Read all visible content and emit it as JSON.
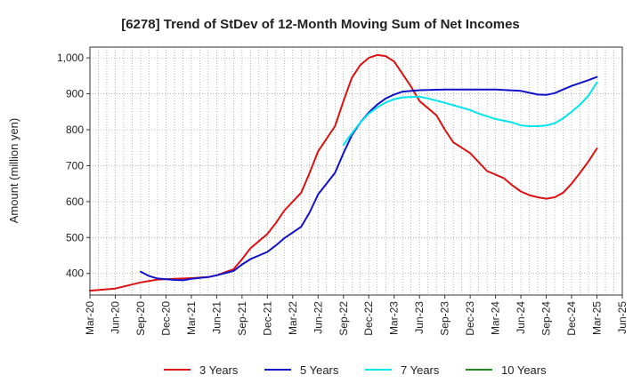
{
  "chart_data": {
    "type": "line",
    "title": "[6278]  Trend of StDev of 12-Month Moving Sum of Net Incomes",
    "ylabel": "Amount (million yen)",
    "xlabel": "",
    "ylim": [
      340,
      1030
    ],
    "yticks": [
      400,
      500,
      600,
      700,
      800,
      900,
      1000
    ],
    "ytick_labels": [
      "400",
      "500",
      "600",
      "700",
      "800",
      "900",
      "1,000"
    ],
    "x_tick_labels": [
      "Mar-20",
      "Jun-20",
      "Sep-20",
      "Dec-20",
      "Mar-21",
      "Jun-21",
      "Sep-21",
      "Dec-21",
      "Mar-22",
      "Jun-22",
      "Sep-22",
      "Dec-22",
      "Mar-23",
      "Jun-23",
      "Sep-23",
      "Dec-23",
      "Mar-24",
      "Jun-24",
      "Sep-24",
      "Dec-24",
      "Mar-25",
      "Jun-25"
    ],
    "grid": true,
    "legend_position": "bottom",
    "series": [
      {
        "name": "3 Years",
        "color": "#dd1111",
        "points": [
          [
            "Mar-20",
            352
          ],
          [
            "Jun-20",
            358
          ],
          [
            "Sep-20",
            375
          ],
          [
            "Nov-20",
            383
          ],
          [
            "Jan-21",
            385
          ],
          [
            "Mar-21",
            387
          ],
          [
            "May-21",
            390
          ],
          [
            "Jun-21",
            395
          ],
          [
            "Aug-21",
            412
          ],
          [
            "Sep-21",
            440
          ],
          [
            "Oct-21",
            470
          ],
          [
            "Dec-21",
            510
          ],
          [
            "Jan-22",
            540
          ],
          [
            "Feb-22",
            575
          ],
          [
            "Apr-22",
            625
          ],
          [
            "May-22",
            680
          ],
          [
            "Jun-22",
            740
          ],
          [
            "Aug-22",
            810
          ],
          [
            "Sep-22",
            880
          ],
          [
            "Oct-22",
            945
          ],
          [
            "Nov-22",
            980
          ],
          [
            "Dec-22",
            1000
          ],
          [
            "Jan-23",
            1008
          ],
          [
            "Feb-23",
            1005
          ],
          [
            "Mar-23",
            990
          ],
          [
            "Apr-23",
            955
          ],
          [
            "May-23",
            920
          ],
          [
            "Jun-23",
            880
          ],
          [
            "Aug-23",
            840
          ],
          [
            "Sep-23",
            800
          ],
          [
            "Oct-23",
            765
          ],
          [
            "Dec-23",
            735
          ],
          [
            "Jan-24",
            710
          ],
          [
            "Feb-24",
            685
          ],
          [
            "Apr-24",
            665
          ],
          [
            "May-24",
            645
          ],
          [
            "Jun-24",
            628
          ],
          [
            "Jul-24",
            618
          ],
          [
            "Aug-24",
            612
          ],
          [
            "Sep-24",
            608
          ],
          [
            "Oct-24",
            612
          ],
          [
            "Nov-24",
            625
          ],
          [
            "Dec-24",
            650
          ],
          [
            "Jan-25",
            680
          ],
          [
            "Feb-25",
            712
          ],
          [
            "Mar-25",
            748
          ]
        ]
      },
      {
        "name": "5 Years",
        "color": "#1111cc",
        "points": [
          [
            "Sep-20",
            405
          ],
          [
            "Oct-20",
            393
          ],
          [
            "Nov-20",
            386
          ],
          [
            "Jan-21",
            382
          ],
          [
            "Feb-21",
            381
          ],
          [
            "Mar-21",
            385
          ],
          [
            "May-21",
            390
          ],
          [
            "Jun-21",
            395
          ],
          [
            "Aug-21",
            407
          ],
          [
            "Sep-21",
            425
          ],
          [
            "Oct-21",
            440
          ],
          [
            "Dec-21",
            460
          ],
          [
            "Jan-22",
            478
          ],
          [
            "Feb-22",
            498
          ],
          [
            "Apr-22",
            530
          ],
          [
            "May-22",
            570
          ],
          [
            "Jun-22",
            620
          ],
          [
            "Aug-22",
            680
          ],
          [
            "Sep-22",
            735
          ],
          [
            "Oct-22",
            785
          ],
          [
            "Nov-22",
            820
          ],
          [
            "Dec-22",
            848
          ],
          [
            "Jan-23",
            870
          ],
          [
            "Feb-23",
            887
          ],
          [
            "Mar-23",
            898
          ],
          [
            "Apr-23",
            906
          ],
          [
            "Jun-23",
            910
          ],
          [
            "Sep-23",
            912
          ],
          [
            "Dec-23",
            912
          ],
          [
            "Mar-24",
            912
          ],
          [
            "Jun-24",
            908
          ],
          [
            "Jul-24",
            903
          ],
          [
            "Aug-24",
            898
          ],
          [
            "Sep-24",
            897
          ],
          [
            "Oct-24",
            902
          ],
          [
            "Nov-24",
            912
          ],
          [
            "Dec-24",
            922
          ],
          [
            "Jan-25",
            930
          ],
          [
            "Feb-25",
            938
          ],
          [
            "Mar-25",
            947
          ]
        ]
      },
      {
        "name": "7 Years",
        "color": "#00e5ee",
        "points": [
          [
            "Sep-22",
            758
          ],
          [
            "Oct-22",
            790
          ],
          [
            "Nov-22",
            820
          ],
          [
            "Dec-22",
            845
          ],
          [
            "Jan-23",
            862
          ],
          [
            "Feb-23",
            876
          ],
          [
            "Mar-23",
            885
          ],
          [
            "Apr-23",
            890
          ],
          [
            "Jun-23",
            892
          ],
          [
            "Jul-23",
            887
          ],
          [
            "Sep-23",
            875
          ],
          [
            "Dec-23",
            855
          ],
          [
            "Jan-24",
            845
          ],
          [
            "Mar-24",
            830
          ],
          [
            "May-24",
            820
          ],
          [
            "Jun-24",
            812
          ],
          [
            "Jul-24",
            810
          ],
          [
            "Aug-24",
            810
          ],
          [
            "Sep-24",
            812
          ],
          [
            "Oct-24",
            818
          ],
          [
            "Nov-24",
            832
          ],
          [
            "Dec-24",
            850
          ],
          [
            "Jan-25",
            870
          ],
          [
            "Feb-25",
            895
          ],
          [
            "Mar-25",
            932
          ]
        ]
      },
      {
        "name": "10 Years",
        "color": "#228b22",
        "points": []
      }
    ]
  }
}
